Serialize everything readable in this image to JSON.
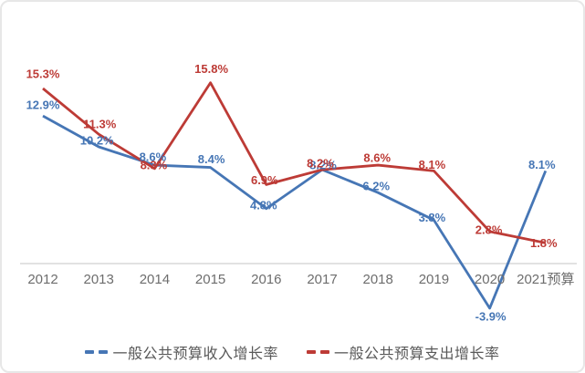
{
  "chart_data": {
    "type": "line",
    "categories": [
      "2012",
      "2013",
      "2014",
      "2015",
      "2016",
      "2017",
      "2018",
      "2019",
      "2020",
      "2021预算"
    ],
    "series": [
      {
        "name": "一般公共预算收入增长率",
        "color": "#4676b5",
        "values": [
          12.9,
          10.2,
          8.6,
          8.4,
          4.8,
          8.2,
          6.2,
          3.8,
          -3.9,
          8.1
        ]
      },
      {
        "name": "一般公共预算支出增长率",
        "color": "#bd3b36",
        "values": [
          15.3,
          11.3,
          8.3,
          15.8,
          6.9,
          8.2,
          8.6,
          8.1,
          2.8,
          1.8
        ]
      }
    ],
    "value_suffix": "%",
    "title": "",
    "xlabel": "",
    "ylabel": "",
    "baseline_value": 0,
    "grid": false,
    "legend_position": "bottom",
    "colors": {
      "axis_line": "#d9d9d9",
      "tick_text": "#6d6d6d",
      "legend_text": "#595959",
      "background": "#ffffff",
      "frame_border": "#e7e7e7"
    }
  }
}
